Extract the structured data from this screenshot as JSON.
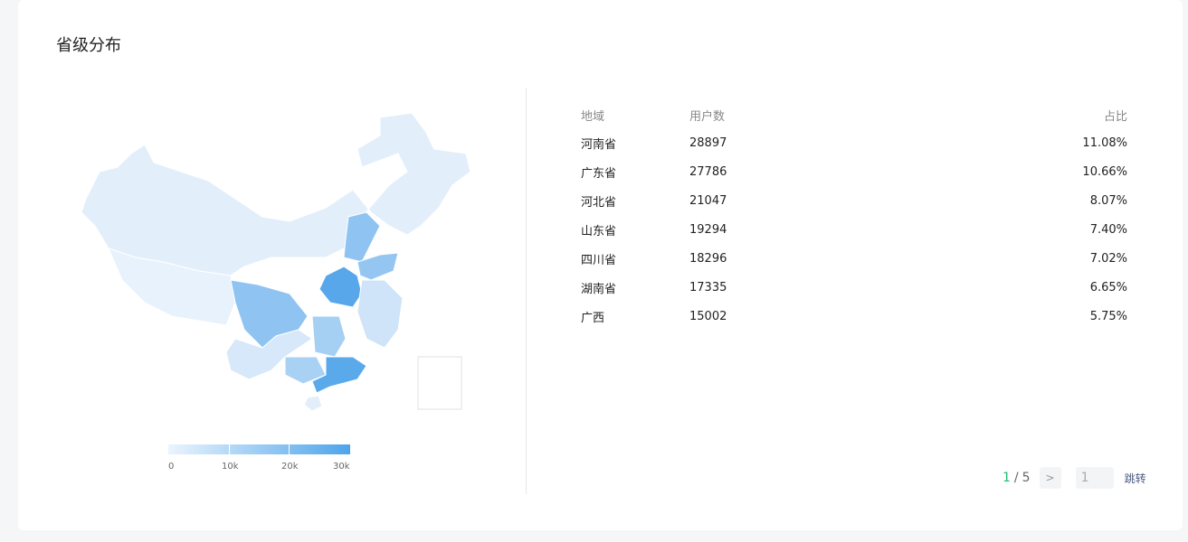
{
  "title": "省级分布",
  "legend": {
    "ticks": [
      "0",
      "10k",
      "20k",
      "30k"
    ],
    "min": 0,
    "max": 30000,
    "color_low": "#eaf4fd",
    "color_high": "#4ea4ea"
  },
  "table": {
    "headers": [
      "地域",
      "用户数",
      "占比"
    ],
    "rows": [
      [
        "河南省",
        "28897",
        "11.08%"
      ],
      [
        "广东省",
        "27786",
        "10.66%"
      ],
      [
        "河北省",
        "21047",
        "8.07%"
      ],
      [
        "山东省",
        "19294",
        "7.40%"
      ],
      [
        "四川省",
        "18296",
        "7.02%"
      ],
      [
        "湖南省",
        "17335",
        "6.65%"
      ],
      [
        "广西",
        "15002",
        "5.75%"
      ]
    ]
  },
  "pager": {
    "current": "1",
    "sep": "/",
    "total": "5",
    "next_icon": "chevron-right-icon",
    "jump_value": "1",
    "jump_label": "跳转"
  }
}
